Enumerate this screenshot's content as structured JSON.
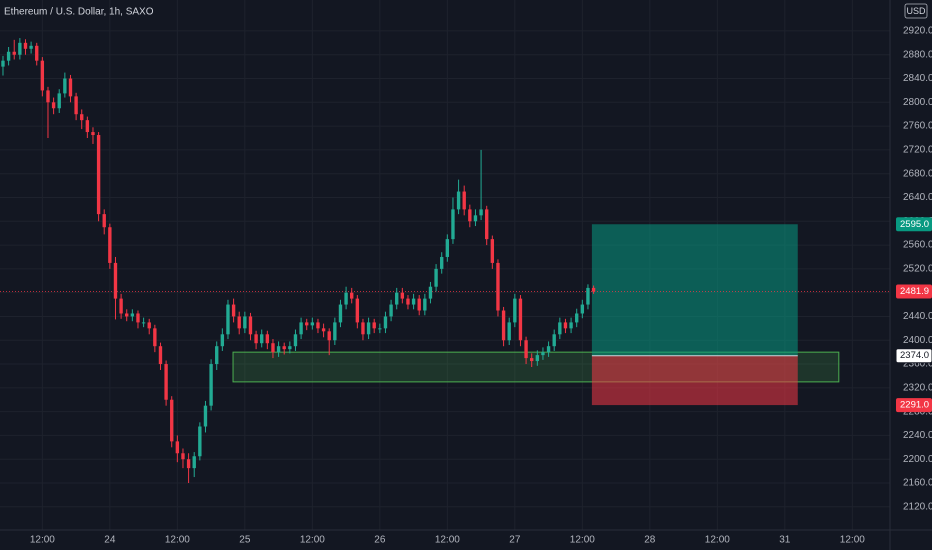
{
  "chart_data": {
    "type": "candlestick",
    "title": "Ethereum / U.S. Dollar, 1h, SAXO",
    "currency": "USD",
    "up_color": "#22ab94",
    "down_color": "#f23645",
    "grid": true,
    "xlim": [
      -0.53,
      157.7
    ],
    "xticks": [
      {
        "value": 7,
        "label": "12:00"
      },
      {
        "value": 19,
        "label": "24"
      },
      {
        "value": 31,
        "label": "12:00"
      },
      {
        "value": 43,
        "label": "25"
      },
      {
        "value": 55,
        "label": "12:00"
      },
      {
        "value": 67,
        "label": "26"
      },
      {
        "value": 79,
        "label": "12:00"
      },
      {
        "value": 91,
        "label": "27"
      },
      {
        "value": 103,
        "label": "12:00"
      },
      {
        "value": 115,
        "label": "28"
      },
      {
        "value": 127,
        "label": "12:00"
      },
      {
        "value": 139,
        "label": "31"
      },
      {
        "value": 151,
        "label": "12:00"
      }
    ],
    "ylim": [
      2081,
      2972
    ],
    "yticks": [
      {
        "value": 2120,
        "label": "2120.0"
      },
      {
        "value": 2160,
        "label": "2160.0"
      },
      {
        "value": 2200,
        "label": "2200.0"
      },
      {
        "value": 2240,
        "label": "2240.0"
      },
      {
        "value": 2280,
        "label": "2280.0"
      },
      {
        "value": 2320,
        "label": "2320.0"
      },
      {
        "value": 2360,
        "label": "2360.0"
      },
      {
        "value": 2400,
        "label": "2400.0"
      },
      {
        "value": 2440,
        "label": "2440.0"
      },
      {
        "value": 2480,
        "label": "2480.0"
      },
      {
        "value": 2520,
        "label": "2520.0"
      },
      {
        "value": 2560,
        "label": "2560.0"
      },
      {
        "value": 2600,
        "label": "2600.0"
      },
      {
        "value": 2640,
        "label": "2640.0"
      },
      {
        "value": 2680,
        "label": "2680.0"
      },
      {
        "value": 2720,
        "label": "2720.0"
      },
      {
        "value": 2760,
        "label": "2760.0"
      },
      {
        "value": 2800,
        "label": "2800.0"
      },
      {
        "value": 2840,
        "label": "2840.0"
      },
      {
        "value": 2880,
        "label": "2880.0"
      },
      {
        "value": 2920,
        "label": "2920.0"
      }
    ],
    "open": [
      2860,
      2870,
      2885,
      2880,
      2900,
      2890,
      2895,
      2870,
      2820,
      2800,
      2790,
      2815,
      2840,
      2810,
      2780,
      2770,
      2750,
      2745,
      2612,
      2590,
      2530,
      2470,
      2445,
      2440,
      2445,
      2430,
      2430,
      2420,
      2390,
      2360,
      2300,
      2230,
      2210,
      2200,
      2185,
      2205,
      2255,
      2290,
      2360,
      2390,
      2410,
      2460,
      2440,
      2420,
      2440,
      2410,
      2395,
      2410,
      2395,
      2380,
      2390,
      2385,
      2390,
      2410,
      2430,
      2425,
      2430,
      2420,
      2415,
      2400,
      2430,
      2460,
      2480,
      2470,
      2430,
      2410,
      2430,
      2420,
      2420,
      2440,
      2460,
      2480,
      2470,
      2460,
      2470,
      2450,
      2470,
      2490,
      2520,
      2540,
      2570,
      2620,
      2650,
      2620,
      2600,
      2610,
      2620,
      2570,
      2530,
      2450,
      2400,
      2430,
      2470,
      2400,
      2370,
      2365,
      2375,
      2380,
      2390,
      2410,
      2430,
      2420,
      2430,
      2445,
      2460,
      2488
    ],
    "high": [
      2878,
      2893,
      2905,
      2908,
      2906,
      2902,
      2900,
      2876,
      2826,
      2808,
      2822,
      2850,
      2846,
      2816,
      2788,
      2776,
      2758,
      2750,
      2620,
      2596,
      2540,
      2478,
      2452,
      2452,
      2450,
      2438,
      2436,
      2426,
      2396,
      2366,
      2306,
      2240,
      2218,
      2210,
      2212,
      2262,
      2298,
      2368,
      2398,
      2420,
      2468,
      2470,
      2448,
      2448,
      2446,
      2416,
      2418,
      2416,
      2402,
      2398,
      2396,
      2398,
      2418,
      2438,
      2436,
      2438,
      2436,
      2428,
      2420,
      2438,
      2468,
      2490,
      2488,
      2476,
      2436,
      2438,
      2436,
      2428,
      2448,
      2468,
      2488,
      2488,
      2476,
      2478,
      2476,
      2478,
      2498,
      2528,
      2548,
      2578,
      2640,
      2670,
      2660,
      2628,
      2620,
      2720,
      2626,
      2576,
      2536,
      2456,
      2438,
      2478,
      2476,
      2406,
      2378,
      2383,
      2388,
      2398,
      2418,
      2438,
      2436,
      2438,
      2453,
      2468,
      2494,
      2492
    ],
    "low": [
      2845,
      2862,
      2872,
      2872,
      2880,
      2882,
      2862,
      2810,
      2740,
      2780,
      2782,
      2808,
      2800,
      2770,
      2755,
      2740,
      2730,
      2600,
      2578,
      2520,
      2435,
      2436,
      2432,
      2432,
      2420,
      2422,
      2410,
      2380,
      2350,
      2290,
      2220,
      2195,
      2185,
      2160,
      2170,
      2198,
      2245,
      2282,
      2350,
      2382,
      2402,
      2430,
      2410,
      2412,
      2400,
      2385,
      2388,
      2385,
      2370,
      2372,
      2376,
      2378,
      2382,
      2402,
      2417,
      2418,
      2412,
      2405,
      2375,
      2392,
      2422,
      2452,
      2462,
      2420,
      2400,
      2402,
      2412,
      2412,
      2412,
      2432,
      2452,
      2462,
      2452,
      2452,
      2442,
      2442,
      2462,
      2482,
      2512,
      2532,
      2562,
      2612,
      2610,
      2590,
      2592,
      2602,
      2560,
      2520,
      2440,
      2390,
      2392,
      2422,
      2390,
      2360,
      2355,
      2357,
      2367,
      2372,
      2382,
      2402,
      2412,
      2412,
      2422,
      2437,
      2452,
      2478
    ],
    "close": [
      2870,
      2885,
      2880,
      2900,
      2890,
      2895,
      2870,
      2820,
      2800,
      2790,
      2815,
      2840,
      2810,
      2780,
      2770,
      2750,
      2745,
      2612,
      2590,
      2530,
      2470,
      2445,
      2440,
      2445,
      2430,
      2430,
      2420,
      2390,
      2360,
      2300,
      2230,
      2210,
      2200,
      2185,
      2205,
      2255,
      2290,
      2360,
      2390,
      2410,
      2460,
      2440,
      2420,
      2440,
      2410,
      2395,
      2410,
      2395,
      2380,
      2390,
      2385,
      2390,
      2410,
      2430,
      2425,
      2430,
      2420,
      2415,
      2400,
      2430,
      2460,
      2480,
      2470,
      2430,
      2410,
      2430,
      2420,
      2420,
      2440,
      2460,
      2480,
      2470,
      2460,
      2470,
      2450,
      2470,
      2490,
      2520,
      2540,
      2570,
      2620,
      2650,
      2620,
      2600,
      2610,
      2620,
      2570,
      2530,
      2450,
      2400,
      2430,
      2470,
      2400,
      2370,
      2365,
      2375,
      2380,
      2390,
      2410,
      2430,
      2420,
      2430,
      2445,
      2460,
      2488,
      2481.9
    ],
    "last_price": {
      "value": 2481.9,
      "label": "2481.9"
    },
    "zone": {
      "top": 2380,
      "bottom": 2330,
      "start": 40.9,
      "end": 148.6,
      "color": "#4caf50"
    },
    "position": {
      "values": [
        2595.0,
        2374.0,
        2291.0
      ],
      "value_labels": [
        "2595.0",
        "2374.0",
        "2291.0"
      ],
      "start": 104.7,
      "end": 141.3,
      "target_color": "#089981",
      "stop_color": "#f23645"
    }
  }
}
